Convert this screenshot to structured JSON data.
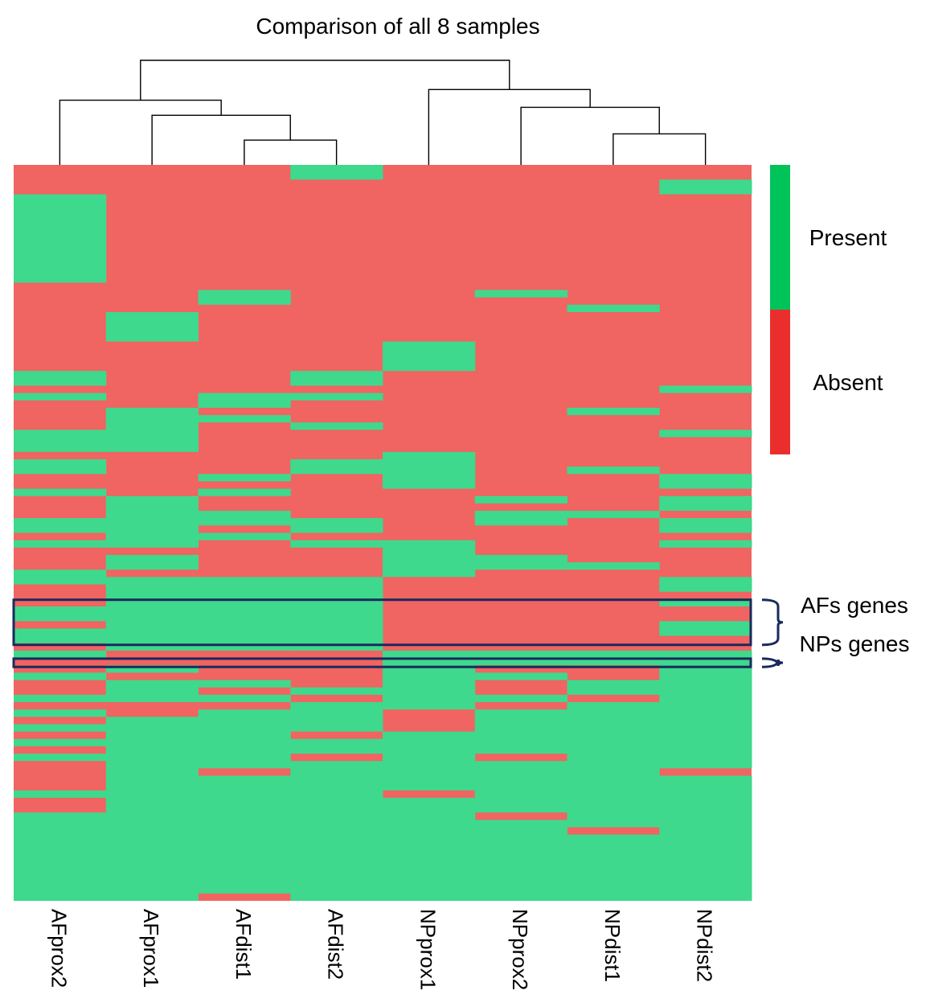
{
  "chart_data": {
    "type": "heatmap",
    "title": "Comparison of all 8 samples",
    "columns": [
      "AFprox2",
      "AFprox1",
      "AFdist1",
      "AFdist2",
      "NPprox1",
      "NPprox2",
      "NPdist1",
      "NPdist2"
    ],
    "legend": {
      "position": "right",
      "items": [
        {
          "label": "Present",
          "color": "#00c35a"
        },
        {
          "label": "Absent",
          "color": "#ea2e2e"
        }
      ]
    },
    "cell_colors": {
      "present": "#3ed98c",
      "absent": "#f06462"
    },
    "row_count": 100,
    "present_segments": {
      "AFprox2": [
        [
          4,
          16
        ],
        [
          28,
          30
        ],
        [
          31,
          32
        ],
        [
          36,
          39
        ],
        [
          40,
          42
        ],
        [
          44,
          45
        ],
        [
          48,
          50
        ],
        [
          51,
          52
        ],
        [
          55,
          57
        ],
        [
          60,
          62
        ],
        [
          63,
          65
        ],
        [
          66,
          67
        ],
        [
          69,
          70
        ],
        [
          72,
          73
        ],
        [
          74,
          75
        ],
        [
          76,
          77
        ],
        [
          78,
          79
        ],
        [
          80,
          81
        ],
        [
          85,
          86
        ],
        [
          88,
          100
        ]
      ],
      "AFprox1": [
        [
          20,
          24
        ],
        [
          33,
          39
        ],
        [
          45,
          52
        ],
        [
          53,
          55
        ],
        [
          56,
          66
        ],
        [
          68,
          69
        ],
        [
          70,
          73
        ],
        [
          75,
          100
        ]
      ],
      "AFdist1": [
        [
          17,
          19
        ],
        [
          31,
          33
        ],
        [
          34,
          35
        ],
        [
          42,
          43
        ],
        [
          44,
          45
        ],
        [
          47,
          49
        ],
        [
          50,
          51
        ],
        [
          56,
          66
        ],
        [
          70,
          71
        ],
        [
          72,
          73
        ],
        [
          74,
          82
        ],
        [
          83,
          99
        ]
      ],
      "AFdist2": [
        [
          0,
          2
        ],
        [
          28,
          30
        ],
        [
          31,
          32
        ],
        [
          35,
          36
        ],
        [
          40,
          41
        ],
        [
          41,
          42
        ],
        [
          48,
          50
        ],
        [
          51,
          52
        ],
        [
          56,
          66
        ],
        [
          71,
          72
        ],
        [
          73,
          77
        ],
        [
          78,
          80
        ],
        [
          81,
          100
        ]
      ],
      "NPprox1": [
        [
          24,
          28
        ],
        [
          39,
          44
        ],
        [
          51,
          56
        ],
        [
          66,
          74
        ],
        [
          77,
          85
        ],
        [
          86,
          100
        ]
      ],
      "NPprox2": [
        [
          17,
          18
        ],
        [
          45,
          46
        ],
        [
          47,
          49
        ],
        [
          53,
          55
        ],
        [
          66,
          68
        ],
        [
          69,
          70
        ],
        [
          72,
          73
        ],
        [
          74,
          80
        ],
        [
          81,
          88
        ],
        [
          89,
          100
        ]
      ],
      "NPdist1": [
        [
          19,
          20
        ],
        [
          33,
          34
        ],
        [
          41,
          42
        ],
        [
          47,
          48
        ],
        [
          54,
          55
        ],
        [
          66,
          68
        ],
        [
          70,
          72
        ],
        [
          73,
          90
        ],
        [
          91,
          100
        ]
      ],
      "NPdist2": [
        [
          2,
          4
        ],
        [
          30,
          31
        ],
        [
          36,
          37
        ],
        [
          42,
          44
        ],
        [
          45,
          47
        ],
        [
          48,
          50
        ],
        [
          51,
          52
        ],
        [
          56,
          58
        ],
        [
          59,
          60
        ],
        [
          62,
          64
        ],
        [
          66,
          82
        ],
        [
          83,
          100
        ]
      ]
    },
    "highlighted_blocks": [
      {
        "label": "AFs genes",
        "rows": [
          58,
          65
        ]
      },
      {
        "label": "NPs genes",
        "rows": [
          66,
          68
        ]
      }
    ],
    "dendrogram": {
      "leaves": [
        "AFprox2",
        "AFprox1",
        "AFdist1",
        "AFdist2",
        "NPprox1",
        "NPprox2",
        "NPdist1",
        "NPdist2"
      ],
      "merges": [
        {
          "id": "m1",
          "left": "AFdist1",
          "right": "AFdist2",
          "height": 1.7
        },
        {
          "id": "m2",
          "left": "AFprox1",
          "right": "m1",
          "height": 1.98
        },
        {
          "id": "m3",
          "left": "AFprox2",
          "right": "m2",
          "height": 2.15
        },
        {
          "id": "m4",
          "left": "NPdist1",
          "right": "NPdist2",
          "height": 1.77
        },
        {
          "id": "m5",
          "left": "NPprox2",
          "right": "m4",
          "height": 2.07
        },
        {
          "id": "m6",
          "left": "NPprox1",
          "right": "m5",
          "height": 2.27
        },
        {
          "id": "m7",
          "left": "m3",
          "right": "m6",
          "height": 2.6
        }
      ]
    }
  }
}
